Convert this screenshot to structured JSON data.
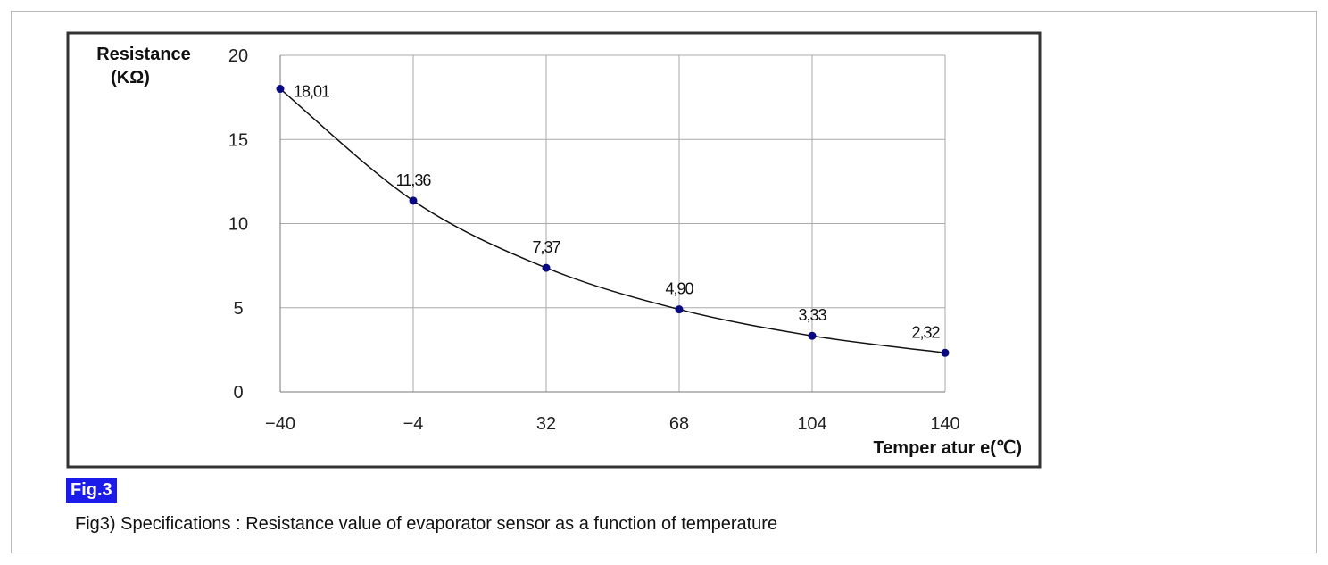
{
  "figure": {
    "badge": "Fig.3",
    "caption": "Fig3) Specifications : Resistance value of evaporator sensor as a function of temperature"
  },
  "chart_data": {
    "type": "line",
    "ylabel_line1": "Resistance",
    "ylabel_line2": "(KΩ)",
    "xlabel": "Temper atur e(℃)",
    "x": [
      -40,
      -4,
      32,
      68,
      104,
      140
    ],
    "x_tick_labels": [
      "−40",
      "−4",
      "32",
      "68",
      "104",
      "140"
    ],
    "y_ticks": [
      0,
      5,
      10,
      15,
      20
    ],
    "ylim": [
      0,
      20
    ],
    "xlim": [
      -40,
      140
    ],
    "grid": true,
    "series": [
      {
        "values": [
          18.01,
          11.36,
          7.37,
          4.9,
          3.33,
          2.32
        ],
        "point_labels": [
          "18,01",
          "11,36",
          "7,37",
          "4,90",
          "3,33",
          "2,32"
        ],
        "line_color": "#111111",
        "marker_color": "#0a0a80"
      }
    ]
  }
}
